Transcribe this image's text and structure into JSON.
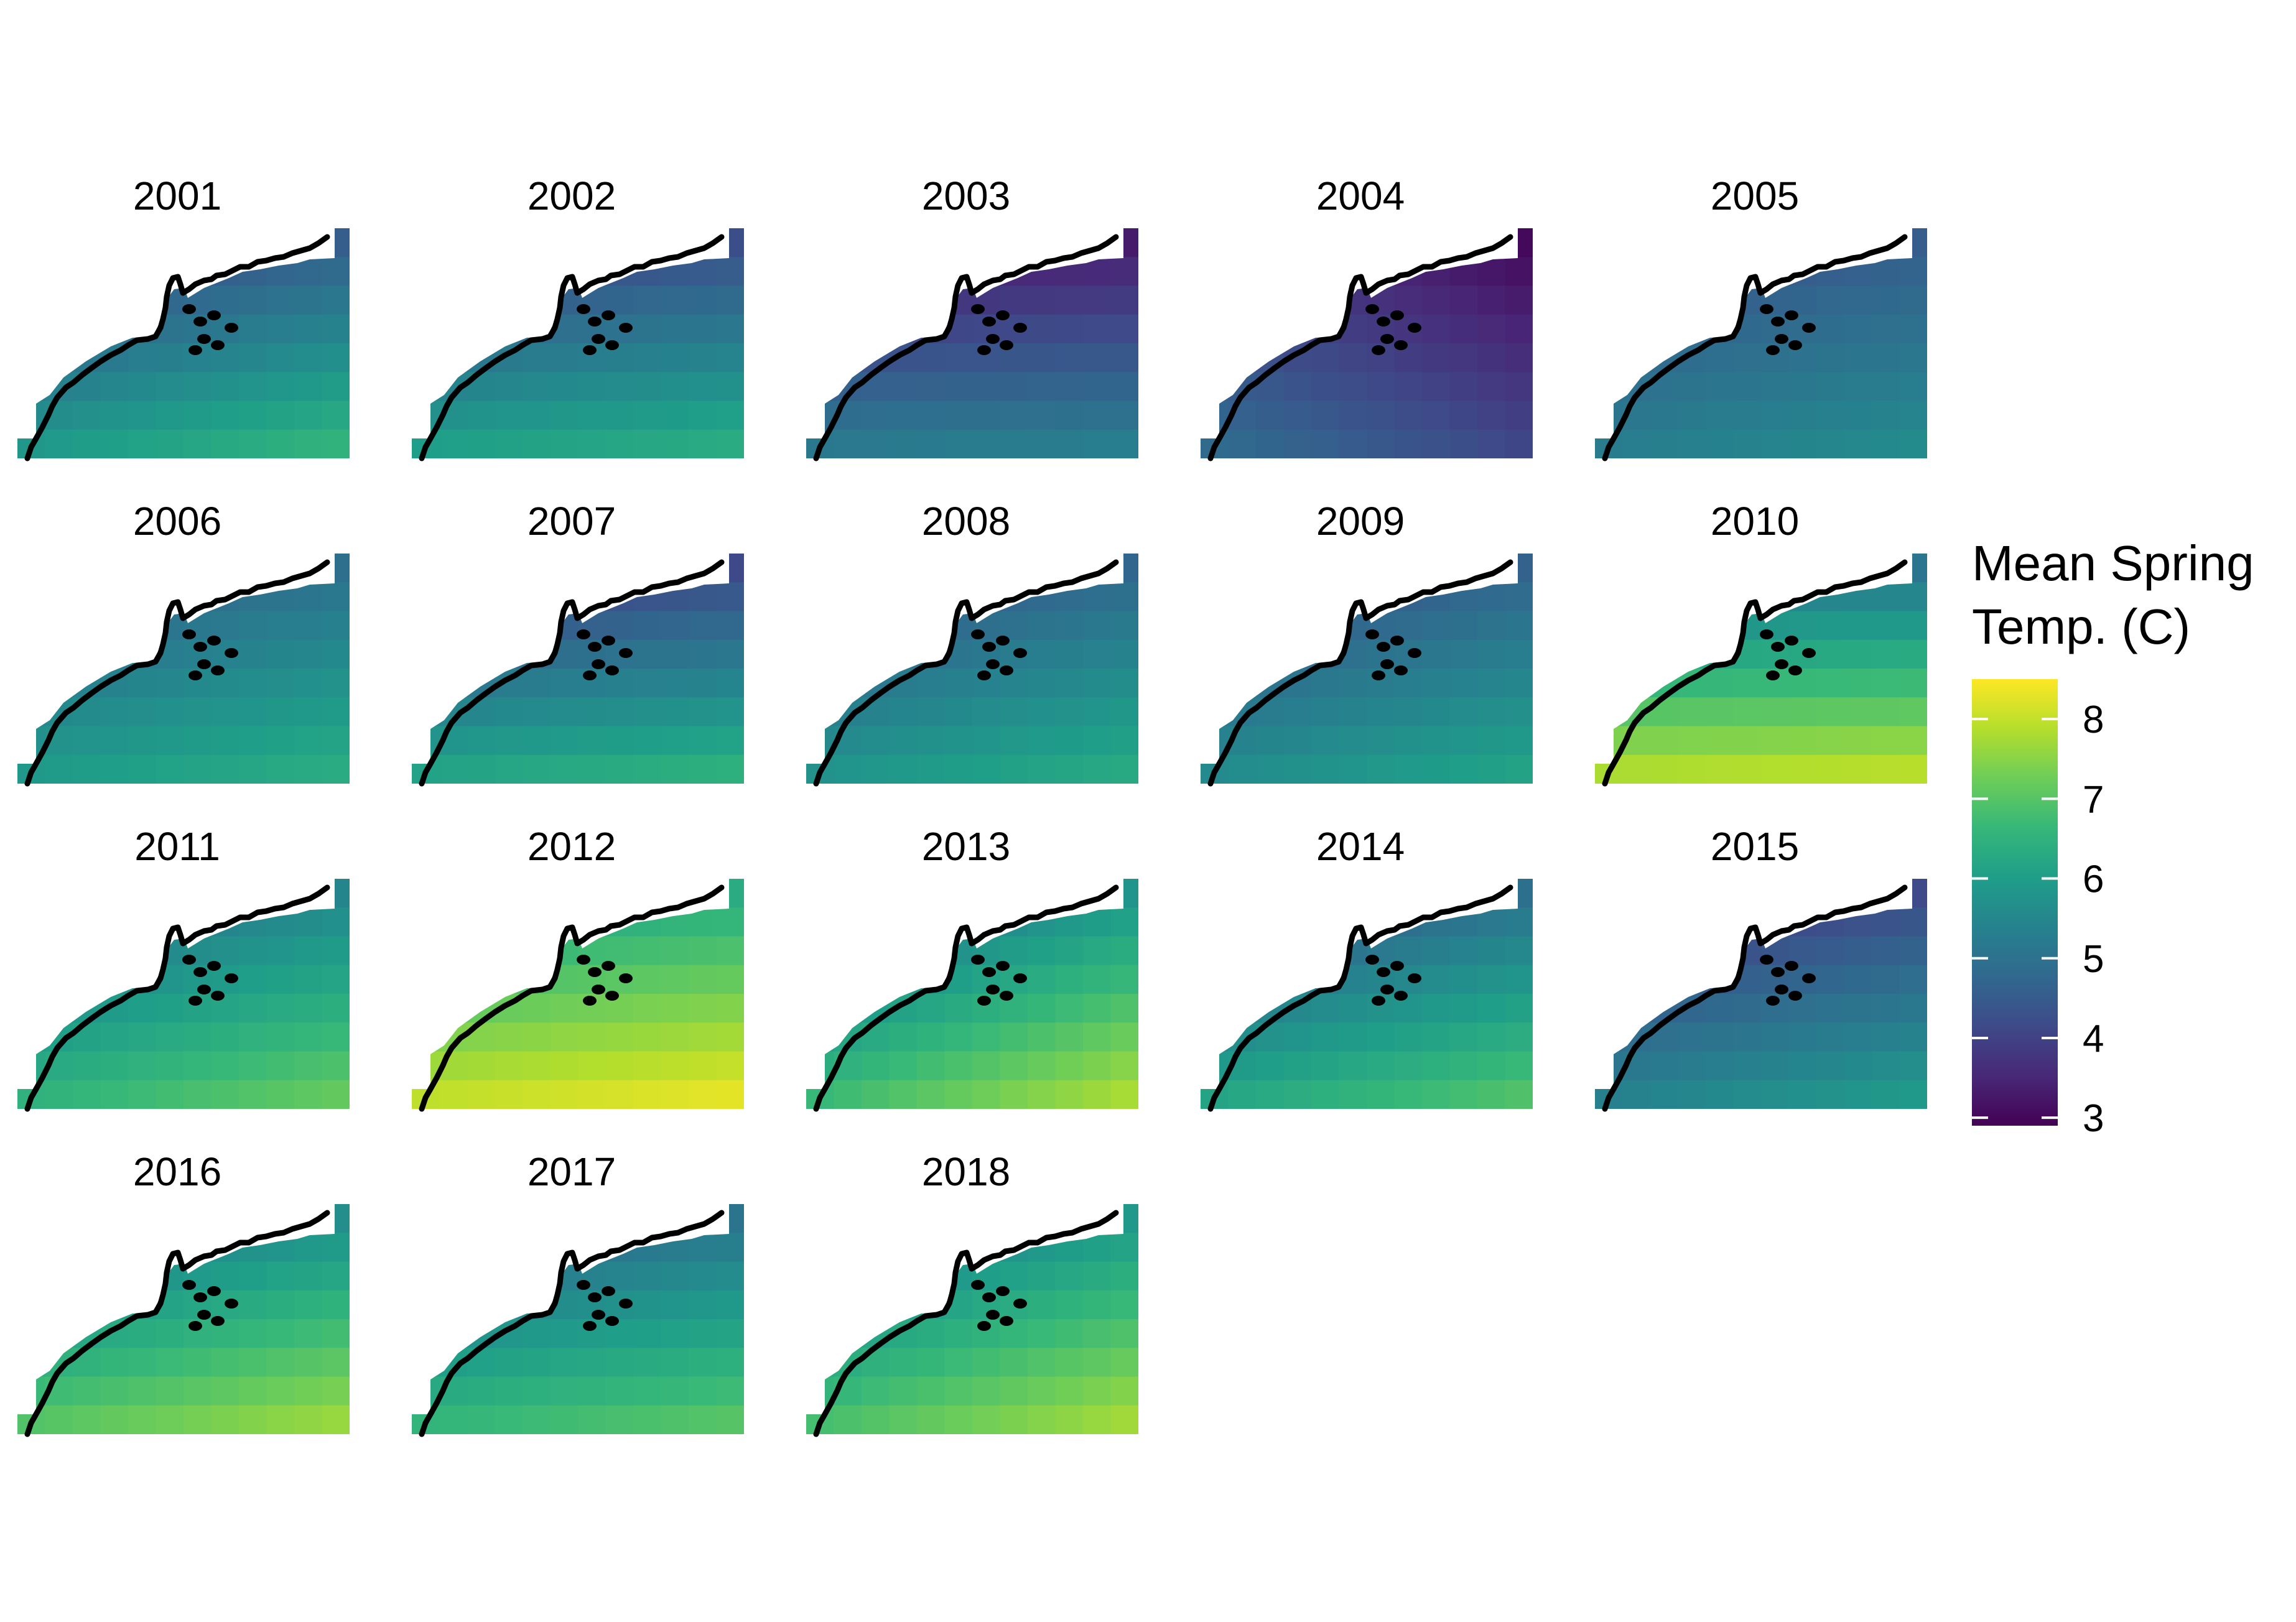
{
  "legend": {
    "title_line1": "Mean Spring",
    "title_line2": "Temp. (C)",
    "ticks": [
      "3",
      "4",
      "5",
      "6",
      "7",
      "8"
    ],
    "tick_values": [
      3,
      4,
      5,
      6,
      7,
      8
    ],
    "range": [
      2.9,
      8.5
    ]
  },
  "colors": {
    "viridis": [
      "#440154",
      "#482878",
      "#3E4A89",
      "#31688E",
      "#26828E",
      "#1F9E89",
      "#35B779",
      "#6DCD59",
      "#B4DE2C",
      "#FDE725"
    ],
    "coastline": "#000000",
    "background": "#ffffff"
  },
  "chart_data": {
    "type": "heatmap",
    "facet_by": "year",
    "grid_cols": 12,
    "grid_rows": 8,
    "cell_rule": "value = base + gx * dx + gy * dy, clamped to legend range; gx = column index 0-11 (west to east), gy = row index 0-7 (north to south)",
    "color_scale": "viridis",
    "grid": false,
    "legend_position": "right",
    "panels": [
      {
        "year": "2001",
        "base": 3.9,
        "dx": 0.06,
        "dy": 0.28
      },
      {
        "year": "2002",
        "base": 3.9,
        "dx": 0.03,
        "dy": 0.3
      },
      {
        "year": "2003",
        "base": 3.2,
        "dx": 0.01,
        "dy": 0.28
      },
      {
        "year": "2004",
        "base": 3.8,
        "dx": -0.07,
        "dy": 0.15
      },
      {
        "year": "2005",
        "base": 4.2,
        "dx": 0.03,
        "dy": 0.15
      },
      {
        "year": "2006",
        "base": 4.5,
        "dx": 0.04,
        "dy": 0.2
      },
      {
        "year": "2007",
        "base": 3.8,
        "dx": 0.03,
        "dy": 0.33
      },
      {
        "year": "2008",
        "base": 4.2,
        "dx": 0.05,
        "dy": 0.22
      },
      {
        "year": "2009",
        "base": 4.1,
        "dx": 0.05,
        "dy": 0.21
      },
      {
        "year": "2010",
        "base": 5.0,
        "dx": 0.01,
        "dy": 0.4
      },
      {
        "year": "2011",
        "base": 4.8,
        "dx": 0.06,
        "dy": 0.24
      },
      {
        "year": "2012",
        "base": 6.0,
        "dx": 0.03,
        "dy": 0.28
      },
      {
        "year": "2013",
        "base": 4.7,
        "dx": 0.1,
        "dy": 0.28
      },
      {
        "year": "2014",
        "base": 4.2,
        "dx": 0.07,
        "dy": 0.28
      },
      {
        "year": "2015",
        "base": 3.6,
        "dx": 0.05,
        "dy": 0.25
      },
      {
        "year": "2016",
        "base": 5.0,
        "dx": 0.06,
        "dy": 0.28
      },
      {
        "year": "2017",
        "base": 4.6,
        "dx": 0.04,
        "dy": 0.28
      },
      {
        "year": "2018",
        "base": 5.0,
        "dx": 0.08,
        "dy": 0.26
      }
    ]
  }
}
